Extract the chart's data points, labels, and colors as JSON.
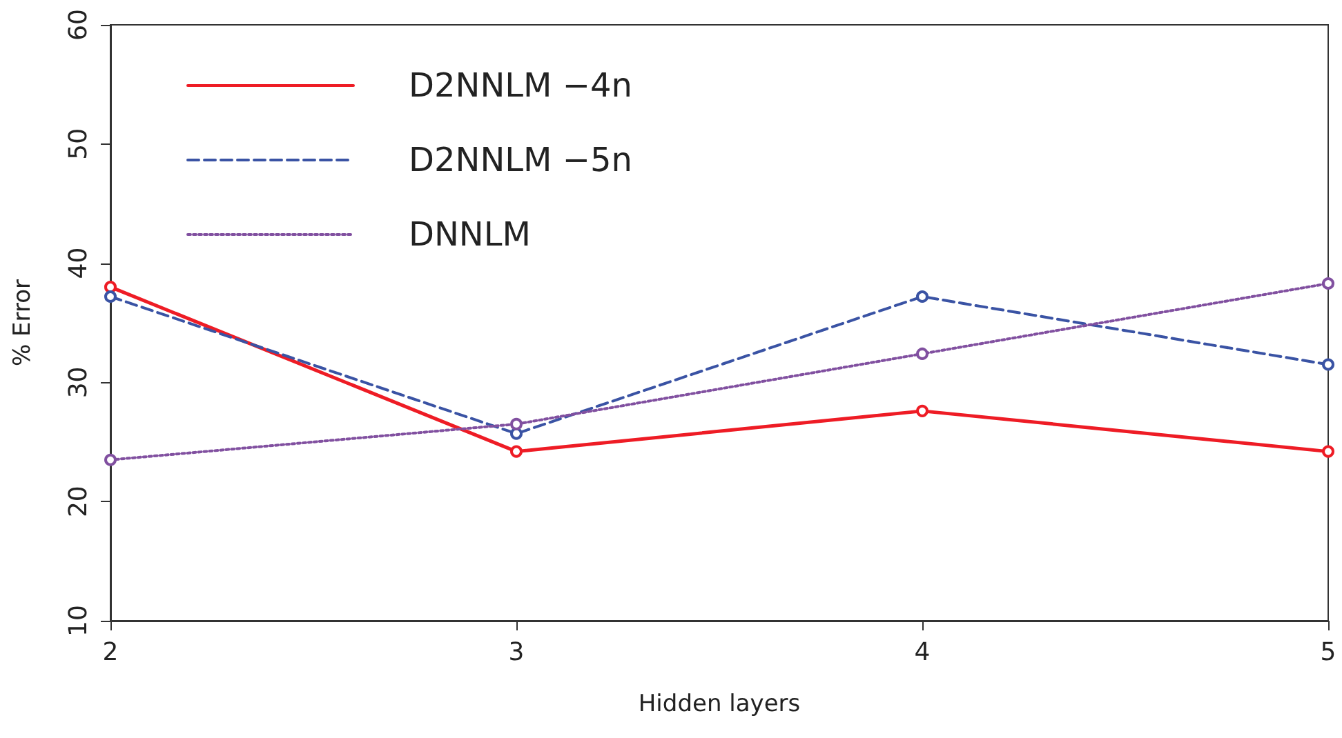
{
  "chart_data": {
    "type": "line",
    "xlabel": "Hidden layers",
    "ylabel": "% Error",
    "x": [
      2,
      3,
      4,
      5
    ],
    "xlim": [
      2,
      5
    ],
    "xticks": [
      2,
      3,
      4,
      5
    ],
    "ylim": [
      10,
      60
    ],
    "yticks": [
      10,
      20,
      30,
      40,
      50,
      60
    ],
    "series": [
      {
        "name": "D2NNLM −4n",
        "color": "#ee1c25",
        "line_style": "solid",
        "values": [
          38.0,
          24.2,
          27.6,
          24.2
        ]
      },
      {
        "name": "D2NNLM −5n",
        "color": "#3a53a4",
        "line_style": "dashed",
        "values": [
          37.2,
          25.7,
          37.2,
          31.5
        ]
      },
      {
        "name": "DNNLM",
        "color": "#8150a0",
        "line_style": "dotted",
        "values": [
          23.5,
          26.5,
          32.4,
          38.3
        ]
      }
    ],
    "marker": "circle",
    "grid": false,
    "legend": "top left"
  }
}
